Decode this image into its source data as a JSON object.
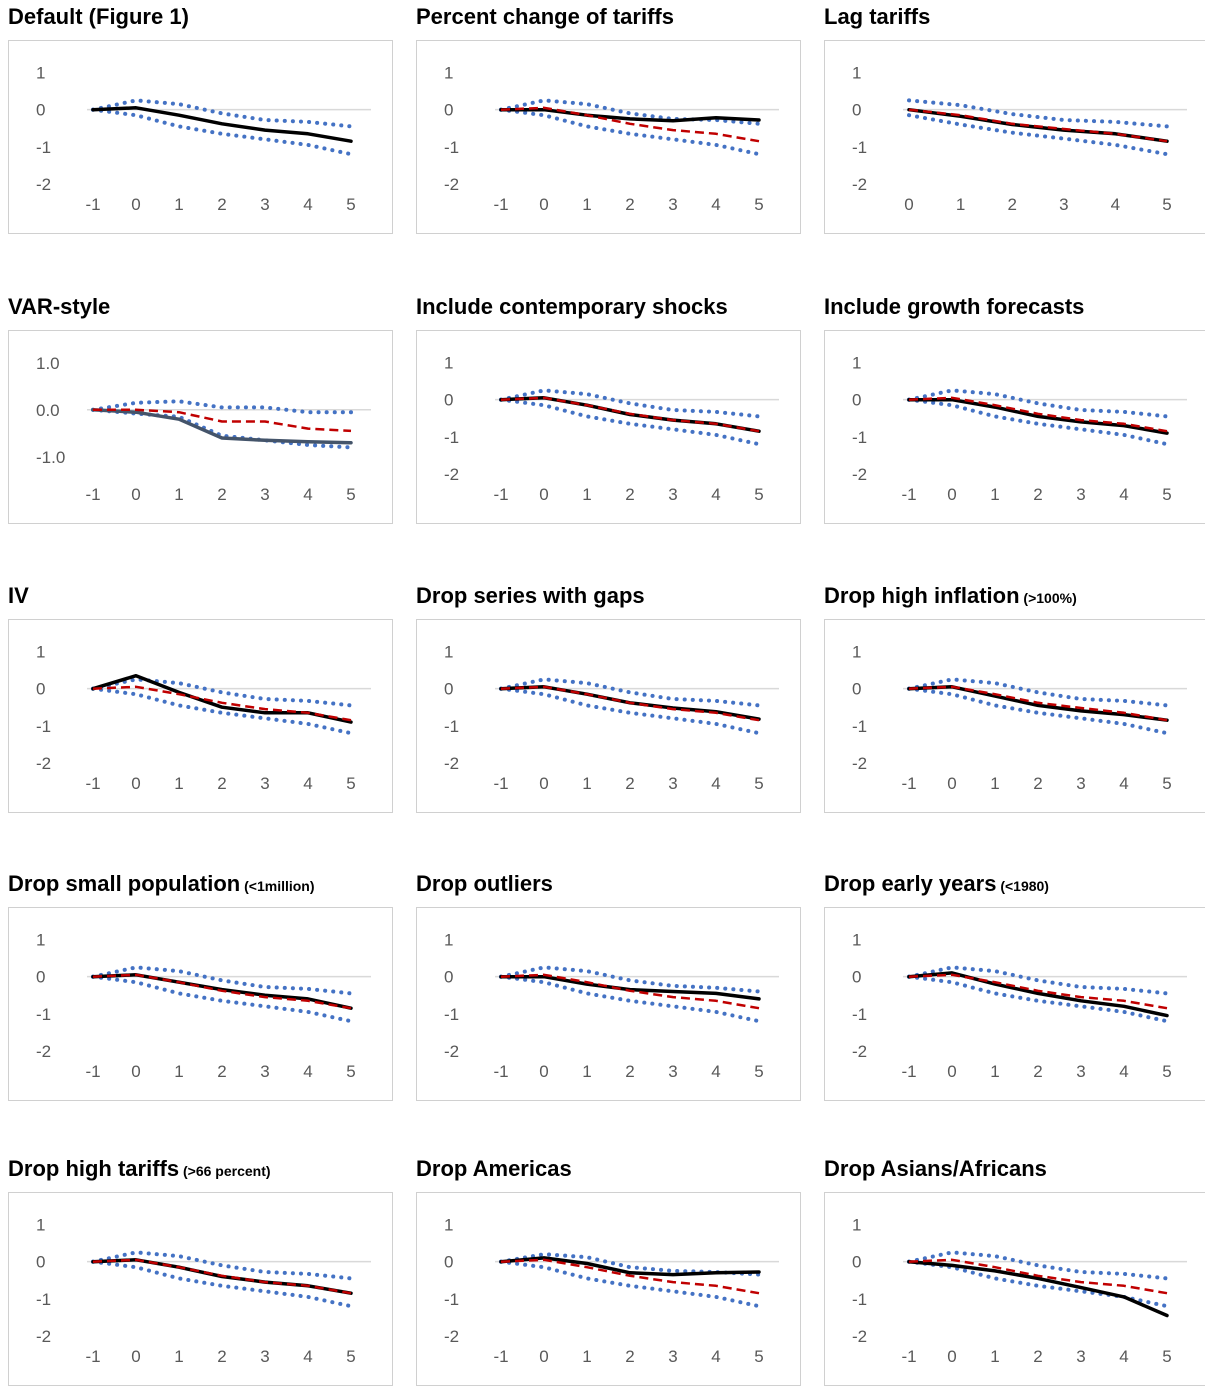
{
  "colors": {
    "baseline": "#c00000",
    "estimate": "#000000",
    "band": "#4472c4",
    "vararea": "#44546a",
    "axis": "#d9d9d9",
    "tick": "#595959"
  },
  "chart_data": [
    {
      "type": "line",
      "title": "Default (Figure 1)",
      "subtitle": "",
      "x": [
        -1,
        0,
        1,
        2,
        3,
        4,
        5
      ],
      "xticks": [
        "-1",
        "0",
        "1",
        "2",
        "3",
        "4",
        "5"
      ],
      "yticks": [
        "1",
        "0",
        "-1",
        "-2"
      ],
      "ylim": [
        -2.3,
        1.5
      ],
      "series": [
        {
          "role": "estimate",
          "values": [
            0,
            0.05,
            -0.15,
            -0.38,
            -0.55,
            -0.65,
            -0.85
          ]
        },
        {
          "role": "lower",
          "values": [
            0,
            -0.15,
            -0.45,
            -0.65,
            -0.8,
            -0.95,
            -1.2
          ]
        },
        {
          "role": "upper",
          "values": [
            0,
            0.25,
            0.15,
            -0.1,
            -0.28,
            -0.33,
            -0.45
          ]
        }
      ]
    },
    {
      "type": "line",
      "title": "Percent change of tariffs",
      "subtitle": "",
      "x": [
        -1,
        0,
        1,
        2,
        3,
        4,
        5
      ],
      "xticks": [
        "-1",
        "0",
        "1",
        "2",
        "3",
        "4",
        "5"
      ],
      "yticks": [
        "1",
        "0",
        "-1",
        "-2"
      ],
      "ylim": [
        -2.3,
        1.5
      ],
      "series": [
        {
          "role": "baseline",
          "values": [
            0,
            0.05,
            -0.15,
            -0.38,
            -0.55,
            -0.65,
            -0.85
          ]
        },
        {
          "role": "estimate",
          "values": [
            0,
            0,
            -0.15,
            -0.25,
            -0.3,
            -0.22,
            -0.28
          ]
        },
        {
          "role": "lower",
          "values": [
            0,
            -0.15,
            -0.45,
            -0.65,
            -0.8,
            -0.95,
            -1.2
          ]
        },
        {
          "role": "upper",
          "values": [
            0,
            0.25,
            0.15,
            -0.1,
            -0.25,
            -0.28,
            -0.38
          ]
        }
      ]
    },
    {
      "type": "line",
      "title": "Lag tariffs",
      "subtitle": "",
      "x": [
        0,
        1,
        2,
        3,
        4,
        5
      ],
      "xticks": [
        "0",
        "1",
        "2",
        "3",
        "4",
        "5"
      ],
      "yticks": [
        "1",
        "0",
        "-1",
        "-2"
      ],
      "ylim": [
        -2.3,
        1.5
      ],
      "series": [
        {
          "role": "baseline",
          "values": [
            0,
            -0.15,
            -0.38,
            -0.52,
            -0.65,
            -0.85
          ]
        },
        {
          "role": "estimate",
          "values": [
            0,
            -0.18,
            -0.4,
            -0.55,
            -0.65,
            -0.85
          ]
        },
        {
          "role": "lower",
          "values": [
            -0.15,
            -0.4,
            -0.62,
            -0.78,
            -0.95,
            -1.2
          ]
        },
        {
          "role": "upper",
          "values": [
            0.25,
            0.12,
            -0.12,
            -0.28,
            -0.33,
            -0.45
          ]
        }
      ]
    },
    {
      "type": "line",
      "title": "VAR-style",
      "subtitle": "",
      "x": [
        -1,
        0,
        1,
        2,
        3,
        4,
        5
      ],
      "xticks": [
        "-1",
        "0",
        "1",
        "2",
        "3",
        "4",
        "5"
      ],
      "yticks": [
        "1.0",
        "0.0",
        "-1.0"
      ],
      "ylim": [
        -1.6,
        1.4
      ],
      "series": [
        {
          "role": "baseline",
          "values": [
            0,
            0,
            -0.05,
            -0.25,
            -0.25,
            -0.4,
            -0.45
          ]
        },
        {
          "role": "vararea",
          "values": [
            0,
            -0.05,
            -0.2,
            -0.6,
            -0.65,
            -0.68,
            -0.7
          ]
        },
        {
          "role": "lower",
          "values": [
            0,
            -0.08,
            -0.15,
            -0.55,
            -0.65,
            -0.75,
            -0.8
          ]
        },
        {
          "role": "upper",
          "values": [
            0,
            0.15,
            0.18,
            0.05,
            0.05,
            -0.05,
            -0.05
          ]
        }
      ]
    },
    {
      "type": "line",
      "title": "Include contemporary shocks",
      "subtitle": "",
      "x": [
        -1,
        0,
        1,
        2,
        3,
        4,
        5
      ],
      "xticks": [
        "-1",
        "0",
        "1",
        "2",
        "3",
        "4",
        "5"
      ],
      "yticks": [
        "1",
        "0",
        "-1",
        "-2"
      ],
      "ylim": [
        -2.3,
        1.5
      ],
      "series": [
        {
          "role": "baseline",
          "values": [
            0,
            0.05,
            -0.15,
            -0.38,
            -0.55,
            -0.65,
            -0.85
          ]
        },
        {
          "role": "estimate",
          "values": [
            0,
            0.05,
            -0.15,
            -0.4,
            -0.55,
            -0.65,
            -0.85
          ]
        },
        {
          "role": "lower",
          "values": [
            0,
            -0.15,
            -0.45,
            -0.65,
            -0.8,
            -0.95,
            -1.2
          ]
        },
        {
          "role": "upper",
          "values": [
            0,
            0.25,
            0.15,
            -0.1,
            -0.28,
            -0.33,
            -0.45
          ]
        }
      ]
    },
    {
      "type": "line",
      "title": "Include growth forecasts",
      "subtitle": "",
      "x": [
        -1,
        0,
        1,
        2,
        3,
        4,
        5
      ],
      "xticks": [
        "-1",
        "0",
        "1",
        "2",
        "3",
        "4",
        "5"
      ],
      "yticks": [
        "1",
        "0",
        "-1",
        "-2"
      ],
      "ylim": [
        -2.3,
        1.5
      ],
      "series": [
        {
          "role": "baseline",
          "values": [
            0,
            0.05,
            -0.15,
            -0.38,
            -0.55,
            -0.65,
            -0.85
          ]
        },
        {
          "role": "estimate",
          "values": [
            0,
            0,
            -0.2,
            -0.45,
            -0.6,
            -0.7,
            -0.9
          ]
        },
        {
          "role": "lower",
          "values": [
            0,
            -0.15,
            -0.45,
            -0.65,
            -0.8,
            -0.95,
            -1.2
          ]
        },
        {
          "role": "upper",
          "values": [
            0,
            0.25,
            0.15,
            -0.1,
            -0.28,
            -0.33,
            -0.45
          ]
        }
      ]
    },
    {
      "type": "line",
      "title": "IV",
      "subtitle": "",
      "x": [
        -1,
        0,
        1,
        2,
        3,
        4,
        5
      ],
      "xticks": [
        "-1",
        "0",
        "1",
        "2",
        "3",
        "4",
        "5"
      ],
      "yticks": [
        "1",
        "0",
        "-1",
        "-2"
      ],
      "ylim": [
        -2.3,
        1.5
      ],
      "series": [
        {
          "role": "baseline",
          "values": [
            0,
            0.05,
            -0.15,
            -0.38,
            -0.55,
            -0.65,
            -0.85
          ]
        },
        {
          "role": "estimate",
          "values": [
            0,
            0.35,
            -0.1,
            -0.5,
            -0.65,
            -0.65,
            -0.9
          ]
        },
        {
          "role": "lower",
          "values": [
            0,
            -0.15,
            -0.45,
            -0.65,
            -0.8,
            -0.95,
            -1.2
          ]
        },
        {
          "role": "upper",
          "values": [
            0,
            0.25,
            0.15,
            -0.1,
            -0.28,
            -0.33,
            -0.45
          ]
        }
      ]
    },
    {
      "type": "line",
      "title": "Drop series with gaps",
      "subtitle": "",
      "x": [
        -1,
        0,
        1,
        2,
        3,
        4,
        5
      ],
      "xticks": [
        "-1",
        "0",
        "1",
        "2",
        "3",
        "4",
        "5"
      ],
      "yticks": [
        "1",
        "0",
        "-1",
        "-2"
      ],
      "ylim": [
        -2.3,
        1.5
      ],
      "series": [
        {
          "role": "baseline",
          "values": [
            0,
            0.05,
            -0.15,
            -0.38,
            -0.55,
            -0.65,
            -0.85
          ]
        },
        {
          "role": "estimate",
          "values": [
            0,
            0.05,
            -0.15,
            -0.38,
            -0.52,
            -0.62,
            -0.82
          ]
        },
        {
          "role": "lower",
          "values": [
            0,
            -0.15,
            -0.45,
            -0.65,
            -0.8,
            -0.95,
            -1.2
          ]
        },
        {
          "role": "upper",
          "values": [
            0,
            0.25,
            0.15,
            -0.1,
            -0.28,
            -0.33,
            -0.45
          ]
        }
      ]
    },
    {
      "type": "line",
      "title": "Drop high inflation",
      "subtitle": "(>100%)",
      "x": [
        -1,
        0,
        1,
        2,
        3,
        4,
        5
      ],
      "xticks": [
        "-1",
        "0",
        "1",
        "2",
        "3",
        "4",
        "5"
      ],
      "yticks": [
        "1",
        "0",
        "-1",
        "-2"
      ],
      "ylim": [
        -2.3,
        1.5
      ],
      "series": [
        {
          "role": "baseline",
          "values": [
            0,
            0.05,
            -0.15,
            -0.38,
            -0.52,
            -0.65,
            -0.85
          ]
        },
        {
          "role": "estimate",
          "values": [
            0,
            0.05,
            -0.2,
            -0.45,
            -0.6,
            -0.7,
            -0.85
          ]
        },
        {
          "role": "lower",
          "values": [
            0,
            -0.15,
            -0.45,
            -0.65,
            -0.8,
            -0.95,
            -1.2
          ]
        },
        {
          "role": "upper",
          "values": [
            0,
            0.25,
            0.15,
            -0.1,
            -0.28,
            -0.33,
            -0.45
          ]
        }
      ]
    },
    {
      "type": "line",
      "title": "Drop small population",
      "subtitle": "(<1million)",
      "x": [
        -1,
        0,
        1,
        2,
        3,
        4,
        5
      ],
      "xticks": [
        "-1",
        "0",
        "1",
        "2",
        "3",
        "4",
        "5"
      ],
      "yticks": [
        "1",
        "0",
        "-1",
        "-2"
      ],
      "ylim": [
        -2.3,
        1.5
      ],
      "series": [
        {
          "role": "baseline",
          "values": [
            0,
            0.05,
            -0.15,
            -0.38,
            -0.55,
            -0.65,
            -0.85
          ]
        },
        {
          "role": "estimate",
          "values": [
            0,
            0.05,
            -0.15,
            -0.35,
            -0.5,
            -0.6,
            -0.85
          ]
        },
        {
          "role": "lower",
          "values": [
            0,
            -0.15,
            -0.45,
            -0.65,
            -0.8,
            -0.95,
            -1.2
          ]
        },
        {
          "role": "upper",
          "values": [
            0,
            0.25,
            0.15,
            -0.1,
            -0.28,
            -0.33,
            -0.45
          ]
        }
      ]
    },
    {
      "type": "line",
      "title": "Drop outliers",
      "subtitle": "",
      "x": [
        -1,
        0,
        1,
        2,
        3,
        4,
        5
      ],
      "xticks": [
        "-1",
        "0",
        "1",
        "2",
        "3",
        "4",
        "5"
      ],
      "yticks": [
        "1",
        "0",
        "-1",
        "-2"
      ],
      "ylim": [
        -2.3,
        1.5
      ],
      "series": [
        {
          "role": "baseline",
          "values": [
            0,
            0.05,
            -0.15,
            -0.38,
            -0.55,
            -0.65,
            -0.85
          ]
        },
        {
          "role": "estimate",
          "values": [
            0,
            0,
            -0.2,
            -0.35,
            -0.4,
            -0.45,
            -0.6
          ]
        },
        {
          "role": "lower",
          "values": [
            0,
            -0.15,
            -0.45,
            -0.65,
            -0.8,
            -0.95,
            -1.2
          ]
        },
        {
          "role": "upper",
          "values": [
            0,
            0.25,
            0.15,
            -0.1,
            -0.25,
            -0.3,
            -0.4
          ]
        }
      ]
    },
    {
      "type": "line",
      "title": "Drop early years",
      "subtitle": "(<1980)",
      "x": [
        -1,
        0,
        1,
        2,
        3,
        4,
        5
      ],
      "xticks": [
        "-1",
        "0",
        "1",
        "2",
        "3",
        "4",
        "5"
      ],
      "yticks": [
        "1",
        "0",
        "-1",
        "-2"
      ],
      "ylim": [
        -2.3,
        1.5
      ],
      "series": [
        {
          "role": "baseline",
          "values": [
            0,
            0.05,
            -0.15,
            -0.38,
            -0.55,
            -0.65,
            -0.85
          ]
        },
        {
          "role": "estimate",
          "values": [
            0,
            0.1,
            -0.2,
            -0.45,
            -0.65,
            -0.8,
            -1.05
          ]
        },
        {
          "role": "lower",
          "values": [
            0,
            -0.15,
            -0.45,
            -0.65,
            -0.8,
            -0.95,
            -1.2
          ]
        },
        {
          "role": "upper",
          "values": [
            0,
            0.25,
            0.15,
            -0.1,
            -0.28,
            -0.33,
            -0.45
          ]
        }
      ]
    },
    {
      "type": "line",
      "title": "Drop high tariffs",
      "subtitle": "(>66 percent)",
      "x": [
        -1,
        0,
        1,
        2,
        3,
        4,
        5
      ],
      "xticks": [
        "-1",
        "0",
        "1",
        "2",
        "3",
        "4",
        "5"
      ],
      "yticks": [
        "1",
        "0",
        "-1",
        "-2"
      ],
      "ylim": [
        -2.3,
        1.5
      ],
      "series": [
        {
          "role": "baseline",
          "values": [
            0,
            0.05,
            -0.15,
            -0.38,
            -0.55,
            -0.65,
            -0.85
          ]
        },
        {
          "role": "estimate",
          "values": [
            0,
            0.05,
            -0.15,
            -0.4,
            -0.55,
            -0.65,
            -0.85
          ]
        },
        {
          "role": "lower",
          "values": [
            0,
            -0.15,
            -0.45,
            -0.65,
            -0.8,
            -0.95,
            -1.2
          ]
        },
        {
          "role": "upper",
          "values": [
            0,
            0.25,
            0.15,
            -0.1,
            -0.28,
            -0.33,
            -0.45
          ]
        }
      ]
    },
    {
      "type": "line",
      "title": "Drop Americas",
      "subtitle": "",
      "x": [
        -1,
        0,
        1,
        2,
        3,
        4,
        5
      ],
      "xticks": [
        "-1",
        "0",
        "1",
        "2",
        "3",
        "4",
        "5"
      ],
      "yticks": [
        "1",
        "0",
        "-1",
        "-2"
      ],
      "ylim": [
        -2.3,
        1.5
      ],
      "series": [
        {
          "role": "baseline",
          "values": [
            0,
            0.05,
            -0.15,
            -0.38,
            -0.55,
            -0.65,
            -0.85
          ]
        },
        {
          "role": "estimate",
          "values": [
            0,
            0.1,
            -0.05,
            -0.3,
            -0.35,
            -0.3,
            -0.28
          ]
        },
        {
          "role": "lower",
          "values": [
            0,
            -0.15,
            -0.45,
            -0.65,
            -0.8,
            -0.95,
            -1.2
          ]
        },
        {
          "role": "upper",
          "values": [
            0,
            0.2,
            0.12,
            -0.15,
            -0.25,
            -0.28,
            -0.35
          ]
        }
      ]
    },
    {
      "type": "line",
      "title": "Drop Asians/Africans",
      "subtitle": "",
      "x": [
        -1,
        0,
        1,
        2,
        3,
        4,
        5
      ],
      "xticks": [
        "-1",
        "0",
        "1",
        "2",
        "3",
        "4",
        "5"
      ],
      "yticks": [
        "1",
        "0",
        "-1",
        "-2"
      ],
      "ylim": [
        -2.3,
        1.5
      ],
      "series": [
        {
          "role": "baseline",
          "values": [
            0,
            0.05,
            -0.15,
            -0.38,
            -0.55,
            -0.65,
            -0.85
          ]
        },
        {
          "role": "estimate",
          "values": [
            0,
            -0.1,
            -0.25,
            -0.45,
            -0.7,
            -0.95,
            -1.45
          ]
        },
        {
          "role": "lower",
          "values": [
            0,
            -0.15,
            -0.45,
            -0.65,
            -0.8,
            -0.95,
            -1.2
          ]
        },
        {
          "role": "upper",
          "values": [
            0,
            0.25,
            0.15,
            -0.1,
            -0.28,
            -0.33,
            -0.45
          ]
        }
      ]
    }
  ]
}
